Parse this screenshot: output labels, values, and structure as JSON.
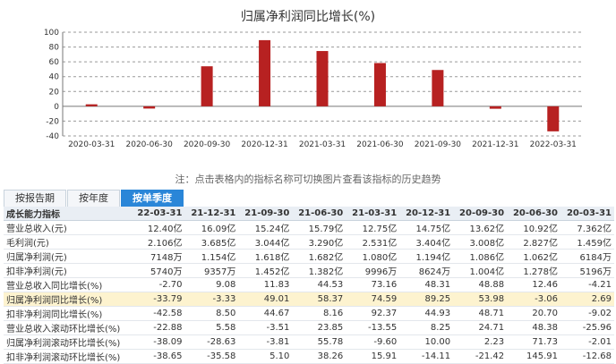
{
  "chart_data": {
    "type": "bar",
    "title": "归属净利润同比增长(%)",
    "categories": [
      "2020-03-31",
      "2020-06-30",
      "2020-09-30",
      "2020-12-31",
      "2021-03-31",
      "2021-06-30",
      "2021-09-30",
      "2021-12-31",
      "2022-03-31"
    ],
    "values": [
      2.69,
      -3.06,
      53.98,
      89.25,
      74.59,
      58.37,
      49.01,
      -3.33,
      -33.79
    ],
    "ylim": [
      -40,
      100
    ],
    "yticks": [
      -40,
      -20,
      0,
      20,
      40,
      60,
      80,
      100
    ],
    "grid": true,
    "bar_color": "#b72121"
  },
  "note": "注：点击表格内的指标名称可切换图片查看该指标的历史趋势",
  "tabs": [
    "按报告期",
    "按年度",
    "按单季度"
  ],
  "table": {
    "headers": [
      "成长能力指标",
      "22-03-31",
      "21-12-31",
      "21-09-30",
      "21-06-30",
      "21-03-31",
      "20-12-31",
      "20-09-30",
      "20-06-30",
      "20-03-31"
    ],
    "rows": [
      [
        "营业总收入(元)",
        "12.40亿",
        "16.09亿",
        "15.24亿",
        "15.79亿",
        "12.75亿",
        "14.75亿",
        "13.62亿",
        "10.92亿",
        "7.362亿"
      ],
      [
        "毛利润(元)",
        "2.106亿",
        "3.685亿",
        "3.044亿",
        "3.290亿",
        "2.531亿",
        "3.404亿",
        "3.008亿",
        "2.827亿",
        "1.459亿"
      ],
      [
        "归属净利润(元)",
        "7148万",
        "1.154亿",
        "1.618亿",
        "1.682亿",
        "1.080亿",
        "1.194亿",
        "1.086亿",
        "1.062亿",
        "6184万"
      ],
      [
        "扣非净利润(元)",
        "5740万",
        "9357万",
        "1.452亿",
        "1.382亿",
        "9996万",
        "8624万",
        "1.004亿",
        "1.278亿",
        "5196万"
      ],
      [
        "营业总收入同比增长(%)",
        "-2.70",
        "9.08",
        "11.83",
        "44.53",
        "73.16",
        "48.31",
        "48.88",
        "12.46",
        "-4.21"
      ],
      [
        "归属净利润同比增长(%)",
        "-33.79",
        "-3.33",
        "49.01",
        "58.37",
        "74.59",
        "89.25",
        "53.98",
        "-3.06",
        "2.69"
      ],
      [
        "扣非净利润同比增长(%)",
        "-42.58",
        "8.50",
        "44.67",
        "8.16",
        "92.37",
        "44.93",
        "48.71",
        "20.70",
        "-9.02"
      ],
      [
        "营业总收入滚动环比增长(%)",
        "-22.88",
        "5.58",
        "-3.51",
        "23.85",
        "-13.55",
        "8.25",
        "24.71",
        "48.38",
        "-25.96"
      ],
      [
        "归属净利润滚动环比增长(%)",
        "-38.09",
        "-28.63",
        "-3.81",
        "55.78",
        "-9.60",
        "10.00",
        "2.23",
        "71.73",
        "-2.01"
      ],
      [
        "扣非净利润滚动环比增长(%)",
        "-38.65",
        "-35.58",
        "5.10",
        "38.26",
        "15.91",
        "-14.11",
        "-21.42",
        "145.91",
        "-12.68"
      ]
    ]
  }
}
